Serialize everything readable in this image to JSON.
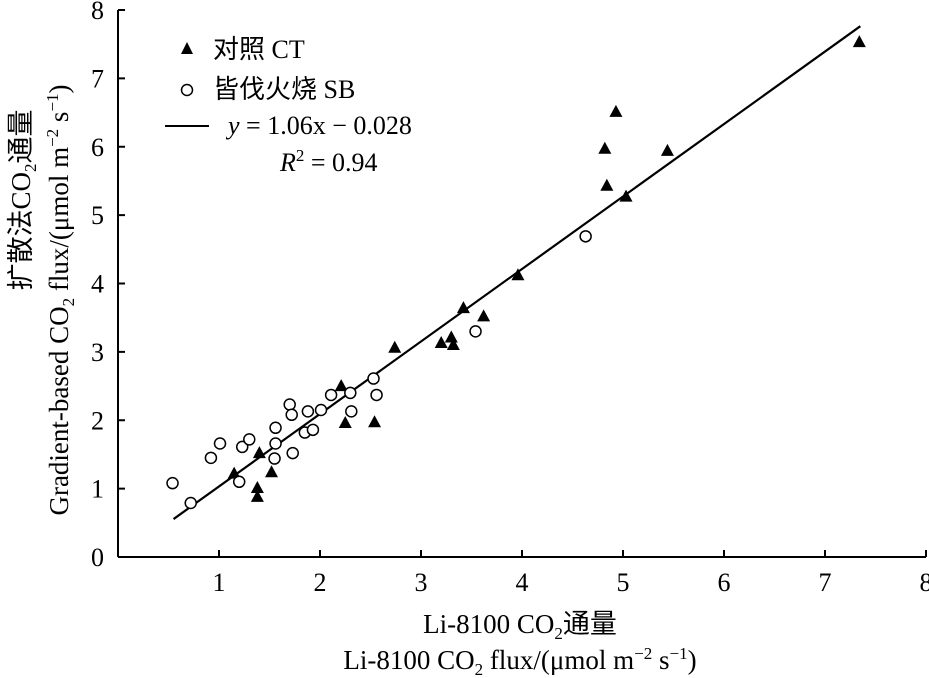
{
  "chart_data": {
    "type": "scatter",
    "xlim": [
      0,
      8
    ],
    "ylim": [
      0,
      8
    ],
    "x_ticks": [
      1,
      2,
      3,
      4,
      5,
      6,
      7,
      8
    ],
    "y_ticks": [
      0,
      1,
      2,
      3,
      4,
      5,
      6,
      7,
      8
    ],
    "xlabel": {
      "line1_pre": "Li-8100 CO",
      "line1_sub": "2",
      "line1_post": "通量",
      "line2_pre": "Li-8100 CO",
      "line2_sub": "2",
      "line2_post": " flux/(μmol m",
      "line2_sup1": "−2",
      "line2_mid": " s",
      "line2_sup2": "−1",
      "line2_end": ")"
    },
    "ylabel": {
      "line1_pre": "扩散法CO",
      "line1_sub": "2",
      "line1_post": "通量",
      "line2_pre": "Gradient-based CO",
      "line2_sub": "2",
      "line2_post": " flux/(μmol m",
      "line2_sup1": "−2",
      "line2_mid": " s",
      "line2_sup2": "−1",
      "line2_end": ")"
    },
    "legend": {
      "placement": "top-left",
      "ct_label": "对照 CT",
      "sb_label": "皆伐火烧 SB",
      "fit_label_y": "y",
      "fit_label_rest": " = 1.06x −  0.028",
      "r2_label_r": "R",
      "r2_label_sup": "2",
      "r2_label_rest": " = 0.94"
    },
    "fit_line": {
      "slope": 1.06,
      "intercept": -0.028,
      "x_range": [
        0.55,
        7.35
      ]
    },
    "series": [
      {
        "name": "对照 CT",
        "marker": "filled-triangle",
        "points": [
          [
            1.15,
            1.22
          ],
          [
            1.38,
            0.88
          ],
          [
            1.38,
            1.01
          ],
          [
            1.4,
            1.52
          ],
          [
            1.52,
            1.24
          ],
          [
            2.21,
            2.5
          ],
          [
            2.25,
            1.96
          ],
          [
            2.54,
            1.97
          ],
          [
            2.74,
            3.06
          ],
          [
            3.2,
            3.13
          ],
          [
            3.3,
            3.21
          ],
          [
            3.32,
            3.1
          ],
          [
            3.42,
            3.64
          ],
          [
            3.62,
            3.52
          ],
          [
            3.96,
            4.12
          ],
          [
            4.82,
            5.97
          ],
          [
            4.84,
            5.43
          ],
          [
            4.93,
            6.51
          ],
          [
            5.03,
            5.27
          ],
          [
            5.44,
            5.94
          ],
          [
            7.34,
            7.53
          ]
        ]
      },
      {
        "name": "皆伐火烧 SB",
        "marker": "open-circle",
        "points": [
          [
            0.54,
            1.08
          ],
          [
            0.72,
            0.79
          ],
          [
            0.92,
            1.45
          ],
          [
            1.01,
            1.66
          ],
          [
            1.2,
            1.1
          ],
          [
            1.23,
            1.61
          ],
          [
            1.3,
            1.72
          ],
          [
            1.55,
            1.44
          ],
          [
            1.56,
            1.89
          ],
          [
            1.56,
            1.66
          ],
          [
            1.7,
            2.23
          ],
          [
            1.72,
            2.08
          ],
          [
            1.73,
            1.52
          ],
          [
            1.85,
            1.82
          ],
          [
            1.88,
            2.13
          ],
          [
            1.93,
            1.86
          ],
          [
            2.01,
            2.15
          ],
          [
            2.11,
            2.37
          ],
          [
            2.3,
            2.4
          ],
          [
            2.31,
            2.13
          ],
          [
            2.53,
            2.61
          ],
          [
            2.56,
            2.37
          ],
          [
            3.54,
            3.3
          ],
          [
            4.63,
            4.69
          ]
        ]
      }
    ],
    "colors": {
      "axis": "#000000",
      "marker": "#000000",
      "background": "#ffffff"
    }
  }
}
